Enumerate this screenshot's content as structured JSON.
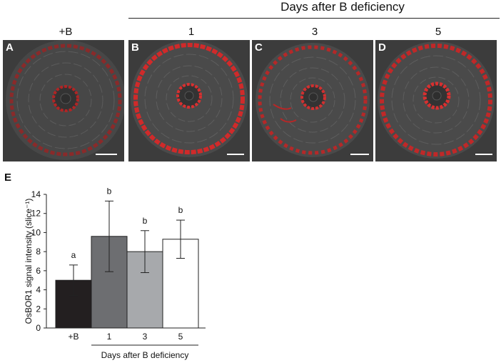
{
  "figure": {
    "header_title": "Days after B deficiency",
    "column_labels": [
      "+B",
      "1",
      "3",
      "5"
    ],
    "panel_letters": [
      "A",
      "B",
      "C",
      "D"
    ],
    "chart_panel_letter": "E"
  },
  "colors": {
    "tissue": "#555555",
    "signal": "#c02020",
    "bar_fills": [
      "#231f20",
      "#6d6e71",
      "#a7a9ac",
      "#ffffff"
    ]
  },
  "chart_data": {
    "type": "bar",
    "categories": [
      "+B",
      "1",
      "3",
      "5"
    ],
    "values": [
      5.0,
      9.6,
      8.0,
      9.3
    ],
    "errors": [
      1.6,
      3.7,
      2.2,
      2.0
    ],
    "significance": [
      "a",
      "b",
      "b",
      "b"
    ],
    "ylabel": "OsBOR1 signal intensity (slice⁻¹)",
    "xlabel": "Days after B deficiency",
    "ylim": [
      0,
      14
    ],
    "yticks": [
      0,
      2,
      4,
      6,
      8,
      10,
      12,
      14
    ]
  }
}
